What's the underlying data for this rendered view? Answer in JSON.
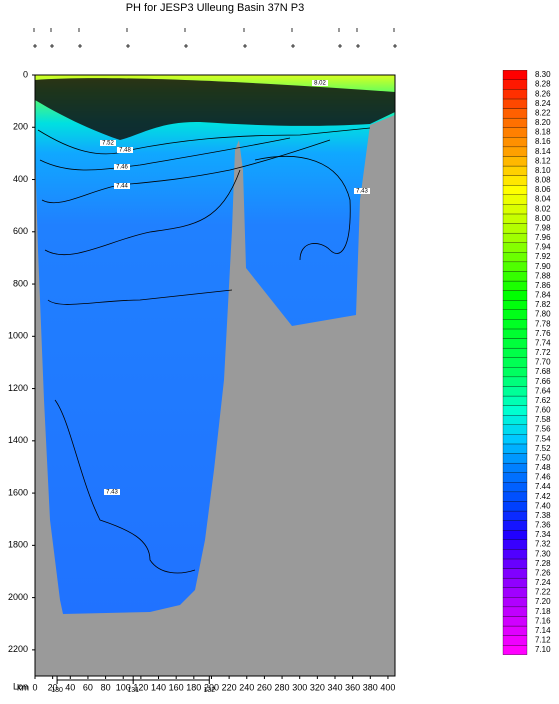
{
  "chart_data": {
    "type": "contour",
    "title": "PH for JESP3 Ulleung Basin 37N P3",
    "xlabel": "km",
    "x2label": "Lon",
    "xlim": [
      0,
      408
    ],
    "xticks": [
      0,
      20,
      40,
      60,
      80,
      100,
      120,
      140,
      160,
      180,
      200,
      220,
      240,
      260,
      280,
      300,
      320,
      340,
      360,
      380,
      400
    ],
    "ylim": [
      0,
      2300
    ],
    "yticks": [
      0,
      200,
      400,
      600,
      800,
      1000,
      1200,
      1400,
      1600,
      1800,
      2000,
      2200
    ],
    "y_inverted": true,
    "lonlim": [
      129.71,
      134.44
    ],
    "lonticks": [
      130,
      131,
      132
    ],
    "contour_labels": [
      8.02,
      7.52,
      7.48,
      7.46,
      7.44,
      7.43,
      7.43
    ],
    "colorbar": {
      "levels": [
        {
          "value": 7.1,
          "label": "7.10"
        },
        7.12,
        7.14,
        7.16,
        7.18,
        {
          "value": 7.2,
          "label": "7.20"
        },
        7.22,
        7.24,
        7.26,
        7.28,
        {
          "value": 7.3,
          "label": "7.30"
        },
        7.32,
        7.34,
        7.36,
        7.38,
        {
          "value": 7.4,
          "label": "7.40"
        },
        7.42,
        7.44,
        7.46,
        7.48,
        {
          "value": 7.5,
          "label": "7.50"
        },
        7.52,
        7.54,
        7.56,
        7.58,
        {
          "value": 7.6,
          "label": "7.60"
        },
        7.62,
        7.64,
        7.66,
        7.68,
        {
          "value": 7.7,
          "label": "7.70"
        },
        7.72,
        7.74,
        7.76,
        7.78,
        {
          "value": 7.8,
          "label": "7.80"
        },
        7.82,
        7.84,
        7.86,
        7.88,
        {
          "value": 7.9,
          "label": "7.90"
        },
        7.92,
        7.94,
        7.96,
        7.98,
        {
          "value": 8.0,
          "label": "8.00"
        },
        8.02,
        8.04,
        8.06,
        8.08,
        {
          "value": 8.1,
          "label": "8.10"
        },
        8.12,
        8.14,
        8.16,
        8.18,
        {
          "value": 8.2,
          "label": "8.20"
        },
        8.22,
        8.24,
        8.26,
        8.28,
        {
          "value": 8.3,
          "label": "8.30"
        }
      ],
      "colormap": [
        {
          "value": 7.1,
          "color": "#ff00ff"
        },
        {
          "value": 7.18,
          "color": "#c000ff"
        },
        {
          "value": 7.26,
          "color": "#8000ff"
        },
        {
          "value": 7.34,
          "color": "#2000ff"
        },
        {
          "value": 7.4,
          "color": "#0040ff"
        },
        {
          "value": 7.48,
          "color": "#0080ff"
        },
        {
          "value": 7.54,
          "color": "#00c8ff"
        },
        {
          "value": 7.6,
          "color": "#00ffd0"
        },
        {
          "value": 7.68,
          "color": "#00ff60"
        },
        {
          "value": 7.84,
          "color": "#00ff00"
        },
        {
          "value": 7.96,
          "color": "#a0ff00"
        },
        {
          "value": 8.06,
          "color": "#ffff00"
        },
        {
          "value": 8.14,
          "color": "#ffa000"
        },
        {
          "value": 8.22,
          "color": "#ff6000"
        },
        {
          "value": 8.3,
          "color": "#ff0000"
        }
      ]
    }
  }
}
